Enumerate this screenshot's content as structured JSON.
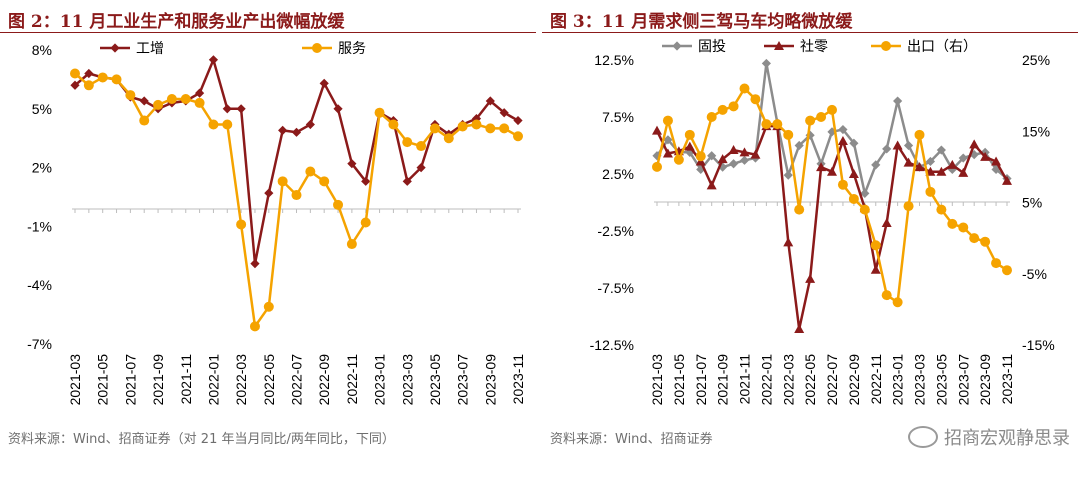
{
  "left": {
    "title": "图 2：11 月工业生产和服务业产出微幅放缓",
    "source": "资料来源：Wind、招商证券（对 21 年当月同比/两年同比，下同）"
  },
  "right": {
    "title": "图 3：11 月需求侧三驾马车均略微放缓",
    "source": "资料来源：Wind、招商证券"
  },
  "watermark": "招商宏观静思录",
  "colors": {
    "industry": "#8b1a1a",
    "services": "#f5a300",
    "fai": "#8c8c8c",
    "retail": "#8b1a1a",
    "export": "#f5a300",
    "title": "#8b1a1a"
  },
  "chart_data": [
    {
      "type": "line",
      "title": "",
      "xlabel": "",
      "ylabel": "",
      "legend_position": "top",
      "x": [
        "2021-03",
        "2021-04",
        "2021-05",
        "2021-06",
        "2021-07",
        "2021-08",
        "2021-09",
        "2021-10",
        "2021-11",
        "2021-12",
        "2022-01",
        "2022-02",
        "2022-03",
        "2022-04",
        "2022-05",
        "2022-06",
        "2022-07",
        "2022-08",
        "2022-09",
        "2022-10",
        "2022-11",
        "2022-12",
        "2023-01",
        "2023-02",
        "2023-03",
        "2023-04",
        "2023-05",
        "2023-06",
        "2023-07",
        "2023-08",
        "2023-09",
        "2023-10",
        "2023-11"
      ],
      "x_tick_labels": [
        "2021-03",
        "2021-05",
        "2021-07",
        "2021-09",
        "2021-11",
        "2022-01",
        "2022-03",
        "2022-05",
        "2022-07",
        "2022-09",
        "2022-11",
        "2023-01",
        "2023-03",
        "2023-05",
        "2023-07",
        "2023-09",
        "2023-11"
      ],
      "ylim": [
        -7,
        8
      ],
      "y_ticks": [
        8,
        5,
        2,
        -1,
        -4,
        -7
      ],
      "y_tick_labels": [
        "8%",
        "5%",
        "2%",
        "-1%",
        "-4%",
        "-7%"
      ],
      "series": [
        {
          "name": "工增",
          "marker": "diamond",
          "values": [
            6.2,
            6.8,
            6.6,
            6.5,
            5.6,
            5.4,
            5.0,
            5.3,
            5.4,
            5.8,
            7.5,
            5.0,
            5.0,
            -2.9,
            0.7,
            3.9,
            3.8,
            4.2,
            6.3,
            5.0,
            2.2,
            1.3,
            4.8,
            4.4,
            1.3,
            2.0,
            4.2,
            3.7,
            4.2,
            4.5,
            5.4,
            4.8,
            4.4
          ]
        },
        {
          "name": "服务",
          "marker": "circle",
          "values": [
            6.8,
            6.2,
            6.6,
            6.5,
            5.7,
            4.4,
            5.2,
            5.5,
            5.5,
            5.3,
            4.2,
            4.2,
            -0.9,
            -6.1,
            -5.1,
            1.3,
            0.6,
            1.8,
            1.3,
            0.1,
            -1.9,
            -0.8,
            4.8,
            4.2,
            3.3,
            3.1,
            4.0,
            3.5,
            4.1,
            4.2,
            4.0,
            4.0,
            3.6
          ]
        }
      ]
    },
    {
      "type": "line",
      "title": "",
      "xlabel": "",
      "ylabel": "",
      "legend_position": "top",
      "x": [
        "2021-03",
        "2021-04",
        "2021-05",
        "2021-06",
        "2021-07",
        "2021-08",
        "2021-09",
        "2021-10",
        "2021-11",
        "2021-12",
        "2022-01",
        "2022-02",
        "2022-03",
        "2022-04",
        "2022-05",
        "2022-06",
        "2022-07",
        "2022-08",
        "2022-09",
        "2022-10",
        "2022-11",
        "2022-12",
        "2023-01",
        "2023-02",
        "2023-03",
        "2023-04",
        "2023-05",
        "2023-06",
        "2023-07",
        "2023-08",
        "2023-09",
        "2023-10",
        "2023-11"
      ],
      "x_tick_labels": [
        "2021-03",
        "2021-05",
        "2021-07",
        "2021-09",
        "2021-11",
        "2022-01",
        "2022-03",
        "2022-05",
        "2022-07",
        "2022-09",
        "2022-11",
        "2023-01",
        "2023-03",
        "2023-05",
        "2023-07",
        "2023-09",
        "2023-11"
      ],
      "ylim": [
        -12.5,
        12.5
      ],
      "y_ticks": [
        12.5,
        7.5,
        2.5,
        -2.5,
        -7.5,
        -12.5
      ],
      "y_tick_labels": [
        "12.5%",
        "7.5%",
        "2.5%",
        "-2.5%",
        "-7.5%",
        "-12.5%"
      ],
      "y2lim": [
        -15,
        25
      ],
      "y2_ticks": [
        25,
        15,
        5,
        -5,
        -15
      ],
      "y2_tick_labels": [
        "25%",
        "15%",
        "5%",
        "-5%",
        "-15%"
      ],
      "series": [
        {
          "name": "固投",
          "axis": "left",
          "marker": "diamond",
          "values": [
            4.1,
            5.5,
            4.4,
            4.4,
            2.9,
            4.1,
            3.1,
            3.4,
            3.7,
            3.9,
            12.2,
            7.0,
            2.4,
            5.0,
            5.9,
            3.4,
            6.2,
            6.4,
            5.2,
            0.8,
            3.3,
            4.7,
            8.9,
            5.0,
            3.1,
            3.6,
            4.6,
            2.9,
            3.9,
            4.2,
            4.4,
            2.9,
            2.1
          ]
        },
        {
          "name": "社零",
          "axis": "left",
          "marker": "triangle",
          "values": [
            6.3,
            4.3,
            4.5,
            4.9,
            3.6,
            1.5,
            3.8,
            4.6,
            4.4,
            4.2,
            6.7,
            6.7,
            -3.5,
            -11.1,
            -6.7,
            3.1,
            2.7,
            5.4,
            2.5,
            -0.5,
            -5.9,
            -1.8,
            5.0,
            3.5,
            3.1,
            2.7,
            2.7,
            3.3,
            2.6,
            5.1,
            4.0,
            3.6,
            1.9
          ]
        },
        {
          "name": "出口（右）",
          "axis": "right",
          "marker": "circle",
          "values": [
            10.0,
            16.5,
            11.0,
            14.5,
            11.5,
            17.0,
            18.0,
            18.5,
            21.0,
            19.5,
            16.0,
            16.0,
            14.5,
            4.0,
            16.5,
            17.0,
            18.0,
            7.5,
            5.5,
            4.0,
            -1.0,
            -8.0,
            -9.0,
            4.5,
            14.5,
            6.5,
            4.0,
            2.0,
            1.5,
            0.0,
            -0.5,
            -3.5,
            -4.5
          ]
        }
      ]
    }
  ]
}
